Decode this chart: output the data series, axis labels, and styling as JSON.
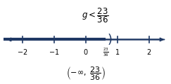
{
  "title": "g < \\dfrac{23}{36}",
  "boundary_value": 0.6389,
  "boundary_label": "\\dfrac{23}{36}",
  "tick_positions": [
    -2,
    -1,
    0,
    1,
    2
  ],
  "x_min": -2,
  "x_max": 2,
  "line_color": "#1f3864",
  "text_color": "#000000",
  "background_color": "#ffffff",
  "figsize": [
    2.43,
    1.2
  ],
  "dpi": 100,
  "interval_notation": "\\left(-\\infty,\\ \\dfrac{23}{36}\\right)"
}
